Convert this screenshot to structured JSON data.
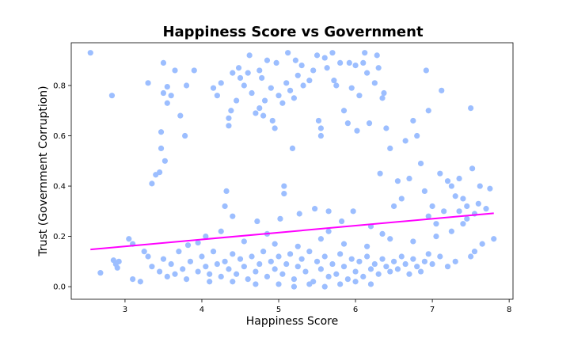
{
  "chart_data": {
    "type": "scatter",
    "title": "Happiness Score vs Government",
    "xlabel": "Happiness Score",
    "ylabel": "Trust (Government Corruption)",
    "xlim": [
      2.3,
      8.05
    ],
    "ylim": [
      -0.05,
      0.97
    ],
    "xticks": [
      "3",
      "4",
      "5",
      "6",
      "7",
      "8"
    ],
    "yticks": [
      "0.0",
      "0.2",
      "0.4",
      "0.6",
      "0.8"
    ],
    "grid": false,
    "legend": "none",
    "colors": {
      "points": "#9cbeff",
      "trend": "#ff00ff"
    },
    "trendline": {
      "x": [
        2.55,
        7.8
      ],
      "y": [
        0.148,
        0.292
      ]
    },
    "series": [
      {
        "points": [
          [
            2.55,
            0.93
          ],
          [
            2.83,
            0.76
          ],
          [
            2.68,
            0.055
          ],
          [
            2.85,
            0.105
          ],
          [
            2.88,
            0.09
          ],
          [
            2.9,
            0.075
          ],
          [
            2.92,
            0.1
          ],
          [
            3.05,
            0.19
          ],
          [
            3.1,
            0.17
          ],
          [
            3.1,
            0.03
          ],
          [
            3.2,
            0.02
          ],
          [
            3.25,
            0.14
          ],
          [
            3.3,
            0.81
          ],
          [
            3.35,
            0.41
          ],
          [
            3.4,
            0.445
          ],
          [
            3.45,
            0.455
          ],
          [
            3.47,
            0.55
          ],
          [
            3.47,
            0.615
          ],
          [
            3.5,
            0.89
          ],
          [
            3.5,
            0.77
          ],
          [
            3.52,
            0.5
          ],
          [
            3.55,
            0.73
          ],
          [
            3.55,
            0.795
          ],
          [
            3.6,
            0.76
          ],
          [
            3.65,
            0.86
          ],
          [
            3.7,
            0.14
          ],
          [
            3.72,
            0.68
          ],
          [
            3.78,
            0.6
          ],
          [
            3.8,
            0.8
          ],
          [
            3.82,
            0.165
          ],
          [
            3.9,
            0.86
          ],
          [
            3.95,
            0.175
          ],
          [
            4.05,
            0.2
          ],
          [
            4.15,
            0.79
          ],
          [
            4.2,
            0.76
          ],
          [
            4.25,
            0.81
          ],
          [
            4.3,
            0.32
          ],
          [
            4.32,
            0.38
          ],
          [
            4.35,
            0.64
          ],
          [
            4.35,
            0.67
          ],
          [
            4.38,
            0.7
          ],
          [
            4.4,
            0.28
          ],
          [
            4.4,
            0.85
          ],
          [
            4.45,
            0.74
          ],
          [
            4.48,
            0.87
          ],
          [
            4.5,
            0.83
          ],
          [
            4.55,
            0.8
          ],
          [
            4.6,
            0.85
          ],
          [
            4.62,
            0.92
          ],
          [
            4.65,
            0.77
          ],
          [
            4.7,
            0.69
          ],
          [
            4.72,
            0.26
          ],
          [
            4.75,
            0.71
          ],
          [
            4.75,
            0.86
          ],
          [
            4.78,
            0.83
          ],
          [
            4.8,
            0.68
          ],
          [
            4.82,
            0.74
          ],
          [
            4.85,
            0.9
          ],
          [
            4.9,
            0.79
          ],
          [
            4.92,
            0.66
          ],
          [
            4.95,
            0.63
          ],
          [
            4.97,
            0.89
          ],
          [
            5.0,
            0.76
          ],
          [
            5.02,
            0.27
          ],
          [
            5.05,
            0.73
          ],
          [
            5.07,
            0.4
          ],
          [
            5.07,
            0.37
          ],
          [
            5.1,
            0.81
          ],
          [
            5.12,
            0.93
          ],
          [
            5.15,
            0.78
          ],
          [
            5.18,
            0.55
          ],
          [
            5.2,
            0.75
          ],
          [
            5.22,
            0.9
          ],
          [
            5.25,
            0.84
          ],
          [
            5.27,
            0.29
          ],
          [
            5.3,
            0.88
          ],
          [
            5.32,
            0.8
          ],
          [
            5.4,
            0.82
          ],
          [
            5.45,
            0.86
          ],
          [
            5.47,
            0.31
          ],
          [
            5.5,
            0.92
          ],
          [
            5.52,
            0.66
          ],
          [
            5.55,
            0.6
          ],
          [
            5.55,
            0.63
          ],
          [
            5.6,
            0.91
          ],
          [
            5.63,
            0.87
          ],
          [
            5.65,
            0.3
          ],
          [
            5.7,
            0.93
          ],
          [
            5.72,
            0.82
          ],
          [
            5.75,
            0.8
          ],
          [
            5.8,
            0.89
          ],
          [
            5.82,
            0.26
          ],
          [
            5.85,
            0.7
          ],
          [
            5.9,
            0.65
          ],
          [
            5.92,
            0.89
          ],
          [
            5.95,
            0.79
          ],
          [
            5.97,
            0.3
          ],
          [
            6.0,
            0.88
          ],
          [
            6.02,
            0.62
          ],
          [
            6.05,
            0.76
          ],
          [
            6.1,
            0.89
          ],
          [
            6.12,
            0.93
          ],
          [
            6.15,
            0.85
          ],
          [
            6.18,
            0.65
          ],
          [
            6.2,
            0.24
          ],
          [
            6.25,
            0.81
          ],
          [
            6.28,
            0.92
          ],
          [
            6.3,
            0.87
          ],
          [
            6.32,
            0.45
          ],
          [
            6.35,
            0.75
          ],
          [
            6.37,
            0.77
          ],
          [
            6.4,
            0.63
          ],
          [
            6.45,
            0.55
          ],
          [
            6.5,
            0.32
          ],
          [
            6.55,
            0.42
          ],
          [
            6.6,
            0.35
          ],
          [
            6.65,
            0.58
          ],
          [
            6.7,
            0.43
          ],
          [
            6.75,
            0.66
          ],
          [
            6.8,
            0.6
          ],
          [
            6.85,
            0.49
          ],
          [
            6.9,
            0.38
          ],
          [
            6.92,
            0.86
          ],
          [
            6.95,
            0.7
          ],
          [
            7.0,
            0.32
          ],
          [
            7.05,
            0.25
          ],
          [
            7.1,
            0.45
          ],
          [
            7.12,
            0.78
          ],
          [
            7.15,
            0.3
          ],
          [
            7.2,
            0.42
          ],
          [
            7.25,
            0.4
          ],
          [
            7.3,
            0.36
          ],
          [
            7.35,
            0.43
          ],
          [
            7.4,
            0.35
          ],
          [
            7.45,
            0.32
          ],
          [
            7.5,
            0.71
          ],
          [
            7.52,
            0.47
          ],
          [
            7.55,
            0.29
          ],
          [
            7.6,
            0.33
          ],
          [
            7.62,
            0.4
          ],
          [
            7.65,
            0.17
          ],
          [
            7.75,
            0.39
          ],
          [
            7.8,
            0.19
          ],
          [
            7.7,
            0.31
          ],
          [
            3.3,
            0.12
          ],
          [
            3.35,
            0.08
          ],
          [
            3.45,
            0.06
          ],
          [
            3.5,
            0.11
          ],
          [
            3.55,
            0.04
          ],
          [
            3.6,
            0.09
          ],
          [
            3.65,
            0.05
          ],
          [
            3.75,
            0.07
          ],
          [
            3.85,
            0.1
          ],
          [
            3.95,
            0.06
          ],
          [
            4.0,
            0.12
          ],
          [
            4.05,
            0.08
          ],
          [
            4.1,
            0.05
          ],
          [
            4.15,
            0.14
          ],
          [
            4.2,
            0.09
          ],
          [
            4.25,
            0.04
          ],
          [
            4.3,
            0.1
          ],
          [
            4.35,
            0.07
          ],
          [
            4.4,
            0.13
          ],
          [
            4.45,
            0.05
          ],
          [
            4.5,
            0.11
          ],
          [
            4.55,
            0.08
          ],
          [
            4.6,
            0.03
          ],
          [
            4.65,
            0.12
          ],
          [
            4.7,
            0.06
          ],
          [
            4.75,
            0.09
          ],
          [
            4.8,
            0.14
          ],
          [
            4.85,
            0.04
          ],
          [
            4.9,
            0.1
          ],
          [
            4.95,
            0.07
          ],
          [
            5.0,
            0.12
          ],
          [
            5.05,
            0.05
          ],
          [
            5.1,
            0.09
          ],
          [
            5.15,
            0.13
          ],
          [
            5.2,
            0.03
          ],
          [
            5.25,
            0.08
          ],
          [
            5.3,
            0.11
          ],
          [
            5.35,
            0.06
          ],
          [
            5.4,
            0.14
          ],
          [
            5.45,
            0.02
          ],
          [
            5.5,
            0.1
          ],
          [
            5.55,
            0.07
          ],
          [
            5.6,
            0.12
          ],
          [
            5.65,
            0.04
          ],
          [
            5.7,
            0.09
          ],
          [
            5.75,
            0.05
          ],
          [
            5.8,
            0.13
          ],
          [
            5.85,
            0.08
          ],
          [
            5.9,
            0.03
          ],
          [
            5.95,
            0.11
          ],
          [
            6.0,
            0.06
          ],
          [
            6.05,
            0.1
          ],
          [
            6.1,
            0.04
          ],
          [
            6.15,
            0.12
          ],
          [
            6.2,
            0.07
          ],
          [
            6.25,
            0.09
          ],
          [
            6.3,
            0.05
          ],
          [
            6.35,
            0.11
          ],
          [
            6.4,
            0.08
          ],
          [
            6.45,
            0.06
          ],
          [
            6.5,
            0.1
          ],
          [
            6.55,
            0.07
          ],
          [
            6.6,
            0.12
          ],
          [
            6.65,
            0.09
          ],
          [
            6.7,
            0.05
          ],
          [
            6.75,
            0.11
          ],
          [
            6.8,
            0.08
          ],
          [
            6.85,
            0.06
          ],
          [
            6.9,
            0.1
          ],
          [
            6.95,
            0.13
          ],
          [
            7.0,
            0.09
          ],
          [
            7.1,
            0.12
          ],
          [
            7.2,
            0.08
          ],
          [
            7.3,
            0.1
          ],
          [
            7.5,
            0.12
          ],
          [
            7.55,
            0.14
          ],
          [
            3.8,
            0.03
          ],
          [
            4.1,
            0.02
          ],
          [
            4.4,
            0.02
          ],
          [
            4.7,
            0.01
          ],
          [
            5.0,
            0.01
          ],
          [
            5.2,
            0.0
          ],
          [
            5.4,
            0.01
          ],
          [
            5.6,
            0.0
          ],
          [
            5.8,
            0.01
          ],
          [
            6.0,
            0.02
          ],
          [
            6.2,
            0.01
          ],
          [
            4.55,
            0.18
          ],
          [
            4.95,
            0.17
          ],
          [
            5.25,
            0.16
          ],
          [
            5.55,
            0.19
          ],
          [
            5.85,
            0.17
          ],
          [
            6.15,
            0.16
          ],
          [
            6.45,
            0.19
          ],
          [
            6.75,
            0.18
          ],
          [
            7.05,
            0.2
          ],
          [
            4.25,
            0.22
          ],
          [
            4.85,
            0.21
          ],
          [
            5.65,
            0.22
          ],
          [
            6.35,
            0.21
          ],
          [
            7.25,
            0.22
          ],
          [
            7.4,
            0.25
          ],
          [
            7.45,
            0.27
          ],
          [
            7.35,
            0.3
          ],
          [
            6.95,
            0.28
          ]
        ]
      }
    ]
  }
}
